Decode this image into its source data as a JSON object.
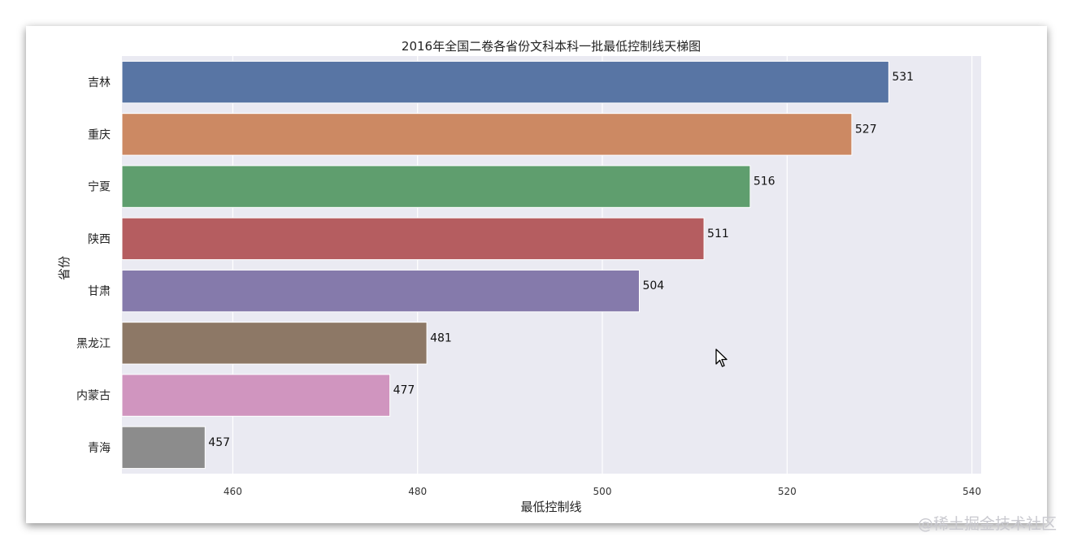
{
  "chart_data": {
    "type": "bar",
    "orientation": "horizontal",
    "title": "2016年全国二卷各省份文科本科一批最低控制线天梯图",
    "xlabel": "最低控制线",
    "ylabel": "省份",
    "categories": [
      "吉林",
      "重庆",
      "宁夏",
      "陕西",
      "甘肃",
      "黑龙江",
      "内蒙古",
      "青海"
    ],
    "values": [
      531,
      527,
      516,
      511,
      504,
      481,
      477,
      457
    ],
    "xlim": [
      448,
      541
    ],
    "xticks": [
      460,
      480,
      500,
      520,
      540
    ],
    "colors": [
      "#5875a4",
      "#cc8963",
      "#5f9e6e",
      "#b55d60",
      "#857aab",
      "#8d7866",
      "#d095bf",
      "#8c8c8c"
    ],
    "background": "#eaeaf2",
    "grid": true
  },
  "watermark": "@稀土掘金技术社区"
}
